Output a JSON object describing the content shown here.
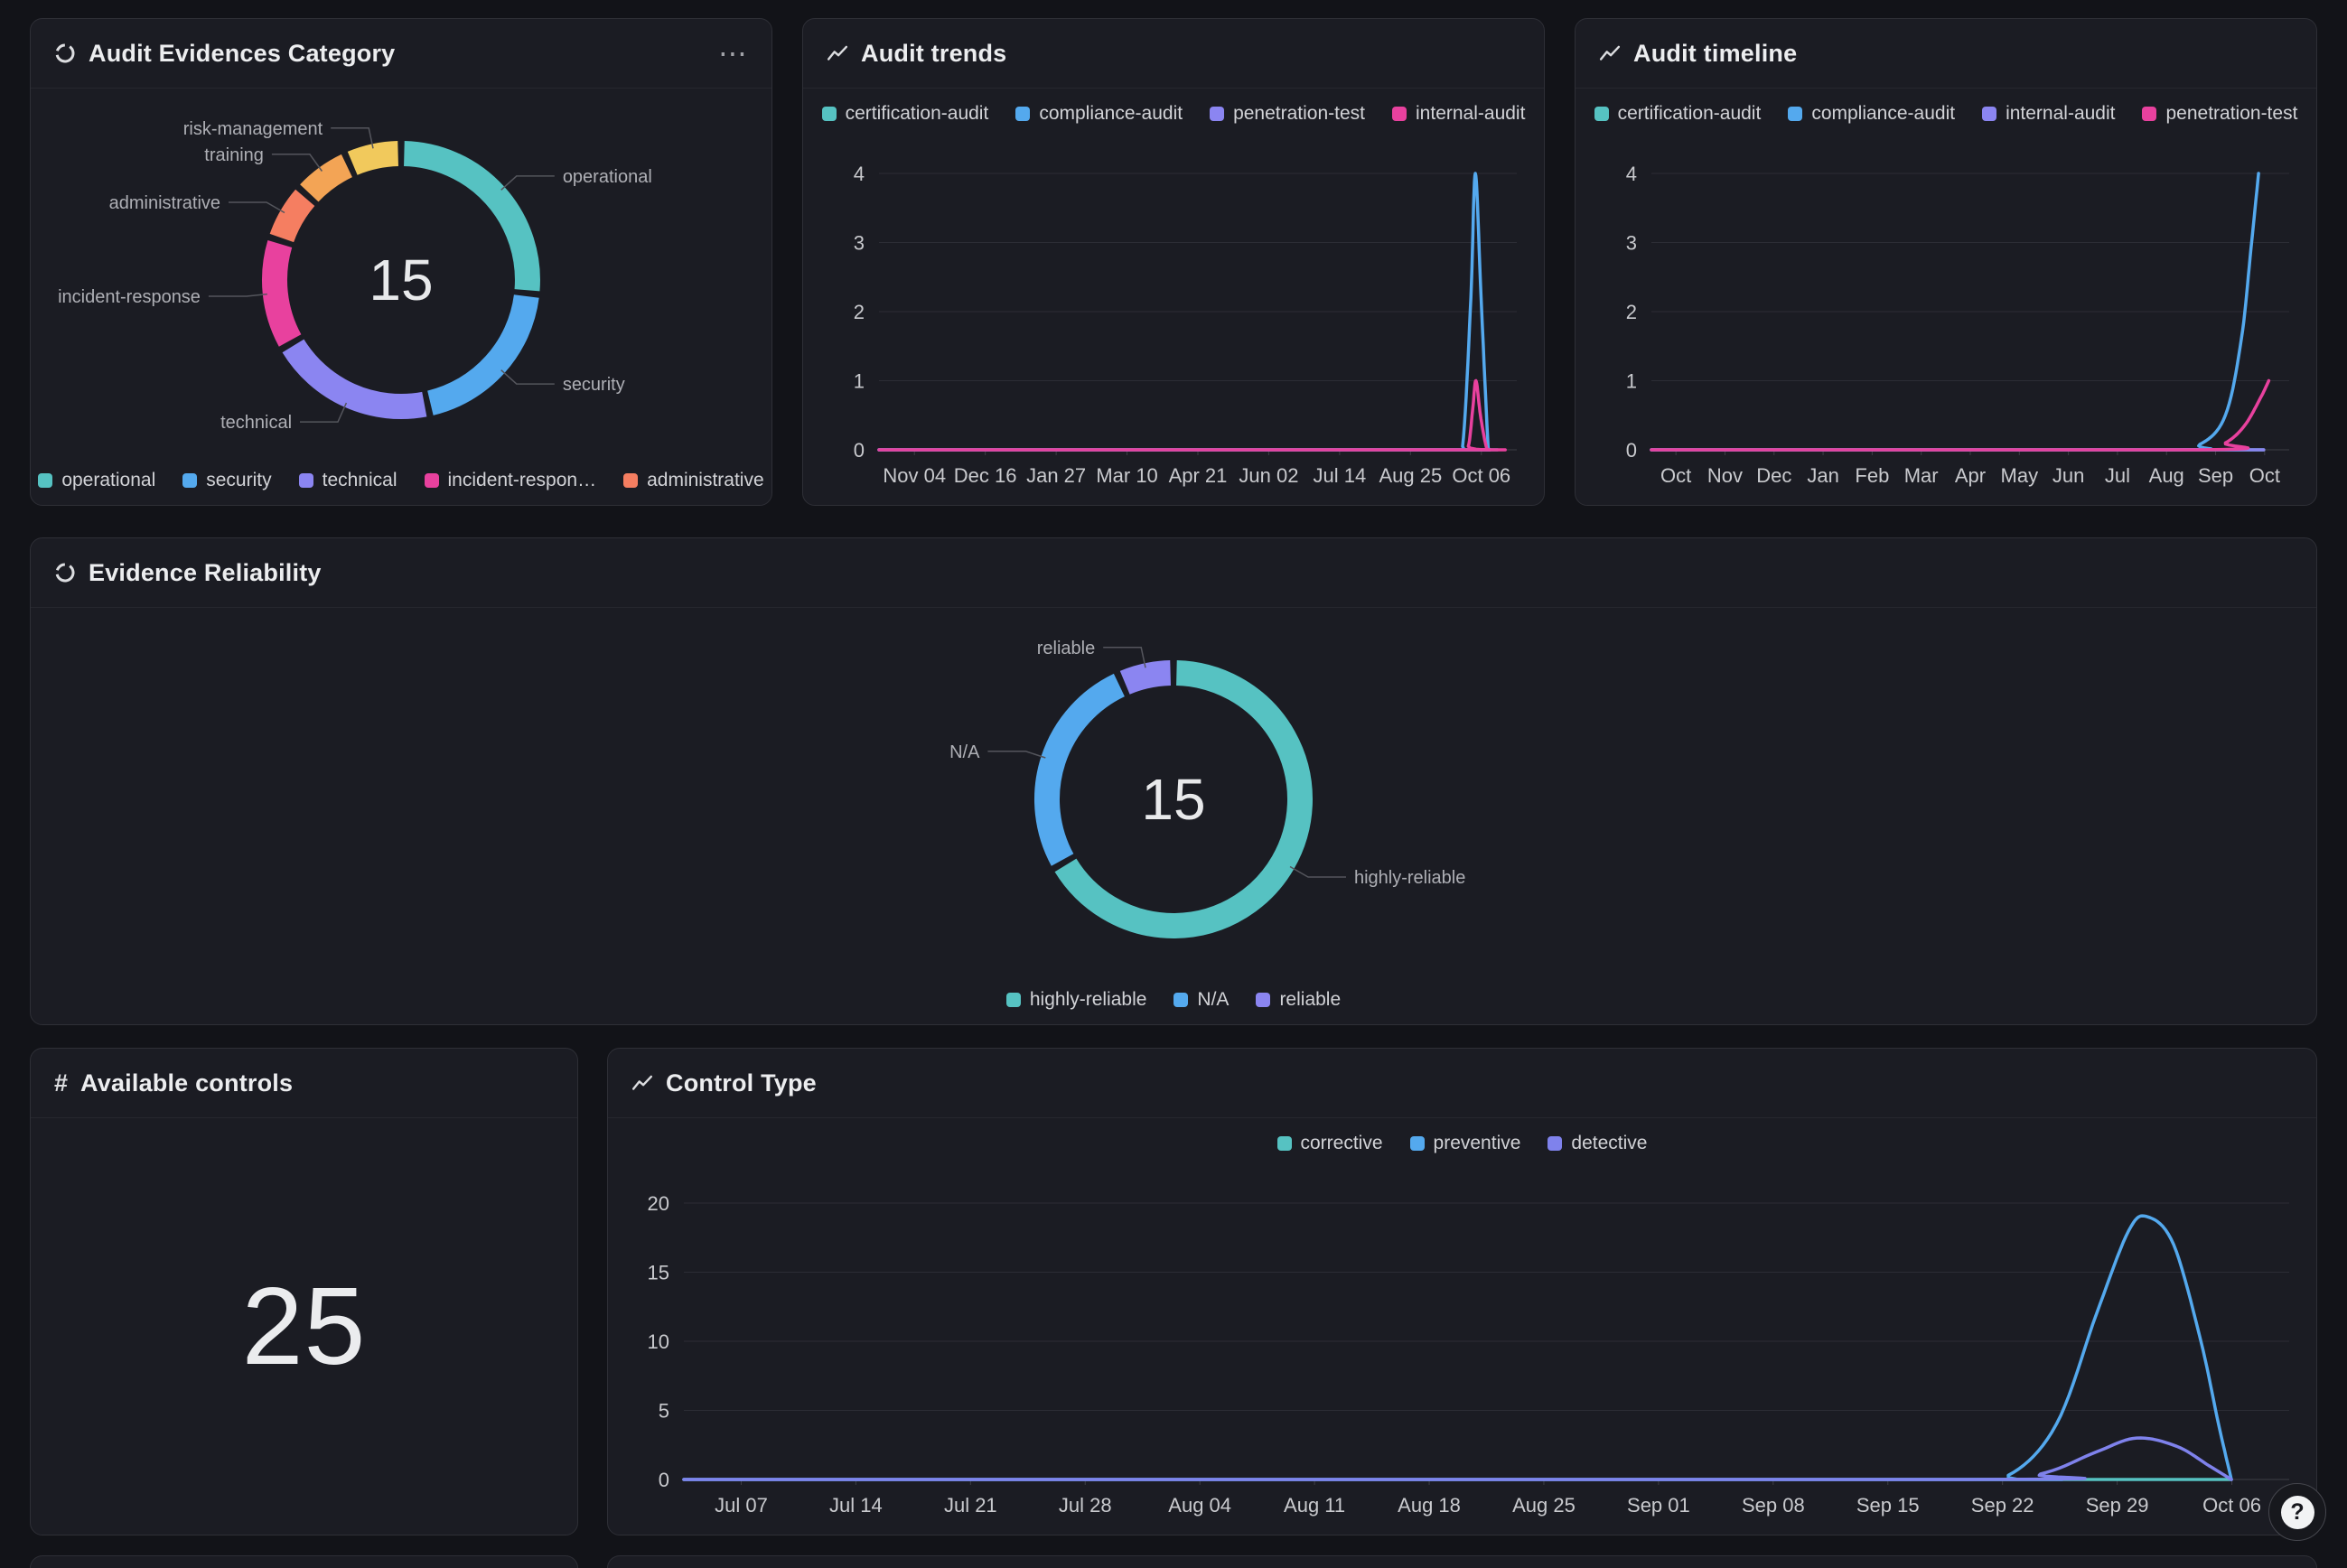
{
  "icons": {
    "kebab": "⋯",
    "help": "?",
    "hash": "#"
  },
  "chart_data": [
    {
      "id": "audit-evidences-category",
      "type": "pie",
      "title": "Audit Evidences Category",
      "center_label": "15",
      "total": 15,
      "slices": [
        {
          "label": "operational",
          "value": 4,
          "color": "#56C2C2"
        },
        {
          "label": "security",
          "value": 3,
          "color": "#54A9EE"
        },
        {
          "label": "technical",
          "value": 3,
          "color": "#8B85F1"
        },
        {
          "label": "incident-response",
          "value": 2,
          "color": "#E8419E"
        },
        {
          "label": "administrative",
          "value": 1,
          "color": "#F57E61"
        },
        {
          "label": "training",
          "value": 1,
          "color": "#F3A455"
        },
        {
          "label": "risk-management",
          "value": 1,
          "color": "#F1C95C"
        }
      ],
      "legend": [
        {
          "label": "operational",
          "color": "#56C2C2"
        },
        {
          "label": "security",
          "color": "#54A9EE"
        },
        {
          "label": "technical",
          "color": "#8B85F1"
        },
        {
          "label": "incident-respon…",
          "color": "#E8419E"
        },
        {
          "label": "administrative",
          "color": "#F57E61"
        }
      ]
    },
    {
      "id": "audit-trends",
      "type": "line",
      "title": "Audit trends",
      "ylim": [
        0,
        4
      ],
      "y_ticks": [
        0,
        1,
        2,
        3,
        4
      ],
      "x_ticks": [
        "Nov 04",
        "Dec 16",
        "Jan 27",
        "Mar 10",
        "Apr 21",
        "Jun 02",
        "Jul 14",
        "Aug 25",
        "Oct 06"
      ],
      "grid": true,
      "legend_position": "top",
      "series": [
        {
          "name": "certification-audit",
          "color": "#56C2C2",
          "points": [
            [
              0,
              0
            ],
            [
              0.958,
              0
            ]
          ]
        },
        {
          "name": "compliance-audit",
          "color": "#54A9EE",
          "points": [
            [
              0,
              0
            ],
            [
              0.9,
              0
            ],
            [
              0.915,
              0.05
            ],
            [
              0.928,
              2.2
            ],
            [
              0.935,
              4
            ],
            [
              0.944,
              2.2
            ],
            [
              0.955,
              0.05
            ],
            [
              0.958,
              0
            ]
          ]
        },
        {
          "name": "penetration-test",
          "color": "#8B85F1",
          "points": [
            [
              0,
              0
            ],
            [
              0.958,
              0
            ]
          ]
        },
        {
          "name": "internal-audit",
          "color": "#E8419E",
          "points": [
            [
              0,
              0
            ],
            [
              0.912,
              0
            ],
            [
              0.924,
              0.05
            ],
            [
              0.931,
              0.6
            ],
            [
              0.936,
              1
            ],
            [
              0.943,
              0.5
            ],
            [
              0.952,
              0.05
            ],
            [
              0.958,
              0
            ]
          ]
        }
      ]
    },
    {
      "id": "audit-timeline",
      "type": "line",
      "title": "Audit timeline",
      "ylim": [
        0,
        4
      ],
      "y_ticks": [
        0,
        1,
        2,
        3,
        4
      ],
      "x_ticks": [
        "Oct",
        "Nov",
        "Dec",
        "Jan",
        "Feb",
        "Mar",
        "Apr",
        "May",
        "Jun",
        "Jul",
        "Aug",
        "Sep",
        "Oct"
      ],
      "grid": true,
      "legend_position": "top",
      "series": [
        {
          "name": "certification-audit",
          "color": "#56C2C2",
          "points": [
            [
              0,
              0
            ],
            [
              0.96,
              0
            ]
          ]
        },
        {
          "name": "compliance-audit",
          "color": "#54A9EE",
          "points": [
            [
              0,
              0
            ],
            [
              0.8,
              0
            ],
            [
              0.86,
              0.08
            ],
            [
              0.9,
              0.5
            ],
            [
              0.925,
              1.6
            ],
            [
              0.94,
              2.9
            ],
            [
              0.952,
              4
            ]
          ]
        },
        {
          "name": "internal-audit",
          "color": "#8B85F1",
          "points": [
            [
              0,
              0
            ],
            [
              0.96,
              0
            ]
          ]
        },
        {
          "name": "penetration-test",
          "color": "#E8419E",
          "points": [
            [
              0,
              0
            ],
            [
              0.86,
              0
            ],
            [
              0.9,
              0.1
            ],
            [
              0.93,
              0.35
            ],
            [
              0.955,
              0.75
            ],
            [
              0.968,
              1
            ]
          ]
        }
      ]
    },
    {
      "id": "evidence-reliability",
      "type": "pie",
      "title": "Evidence Reliability",
      "center_label": "15",
      "total": 15,
      "slices": [
        {
          "label": "highly-reliable",
          "value": 10,
          "color": "#56C2C2"
        },
        {
          "label": "N/A",
          "value": 4,
          "color": "#54A9EE"
        },
        {
          "label": "reliable",
          "value": 1,
          "color": "#8B85F1"
        }
      ],
      "legend": [
        {
          "label": "highly-reliable",
          "color": "#56C2C2"
        },
        {
          "label": "N/A",
          "color": "#54A9EE"
        },
        {
          "label": "reliable",
          "color": "#8B85F1"
        }
      ]
    },
    {
      "id": "available-controls",
      "type": "stat",
      "title": "Available controls",
      "value": "25"
    },
    {
      "id": "control-type",
      "type": "line",
      "title": "Control Type",
      "ylim": [
        0,
        20
      ],
      "y_ticks": [
        0,
        5,
        10,
        15,
        20
      ],
      "x_ticks": [
        "Jul 07",
        "Jul 14",
        "Jul 21",
        "Jul 28",
        "Aug 04",
        "Aug 11",
        "Aug 18",
        "Aug 25",
        "Sep 01",
        "Sep 08",
        "Sep 15",
        "Sep 22",
        "Sep 29",
        "Oct 06"
      ],
      "grid": true,
      "legend_position": "top",
      "series": [
        {
          "name": "corrective",
          "color": "#56C2C2",
          "points": [
            [
              0,
              0
            ],
            [
              0.964,
              0
            ]
          ]
        },
        {
          "name": "preventive",
          "color": "#54A9EE",
          "points": [
            [
              0,
              0
            ],
            [
              0.79,
              0
            ],
            [
              0.825,
              0.3
            ],
            [
              0.855,
              4
            ],
            [
              0.88,
              12
            ],
            [
              0.9,
              18
            ],
            [
              0.912,
              19
            ],
            [
              0.928,
              17
            ],
            [
              0.945,
              10
            ],
            [
              0.956,
              4
            ],
            [
              0.964,
              0
            ]
          ]
        },
        {
          "name": "detective",
          "color": "#7F82EC",
          "points": [
            [
              0,
              0
            ],
            [
              0.8,
              0
            ],
            [
              0.845,
              0.4
            ],
            [
              0.88,
              2
            ],
            [
              0.905,
              3
            ],
            [
              0.93,
              2.4
            ],
            [
              0.95,
              1
            ],
            [
              0.964,
              0
            ]
          ]
        }
      ]
    }
  ]
}
